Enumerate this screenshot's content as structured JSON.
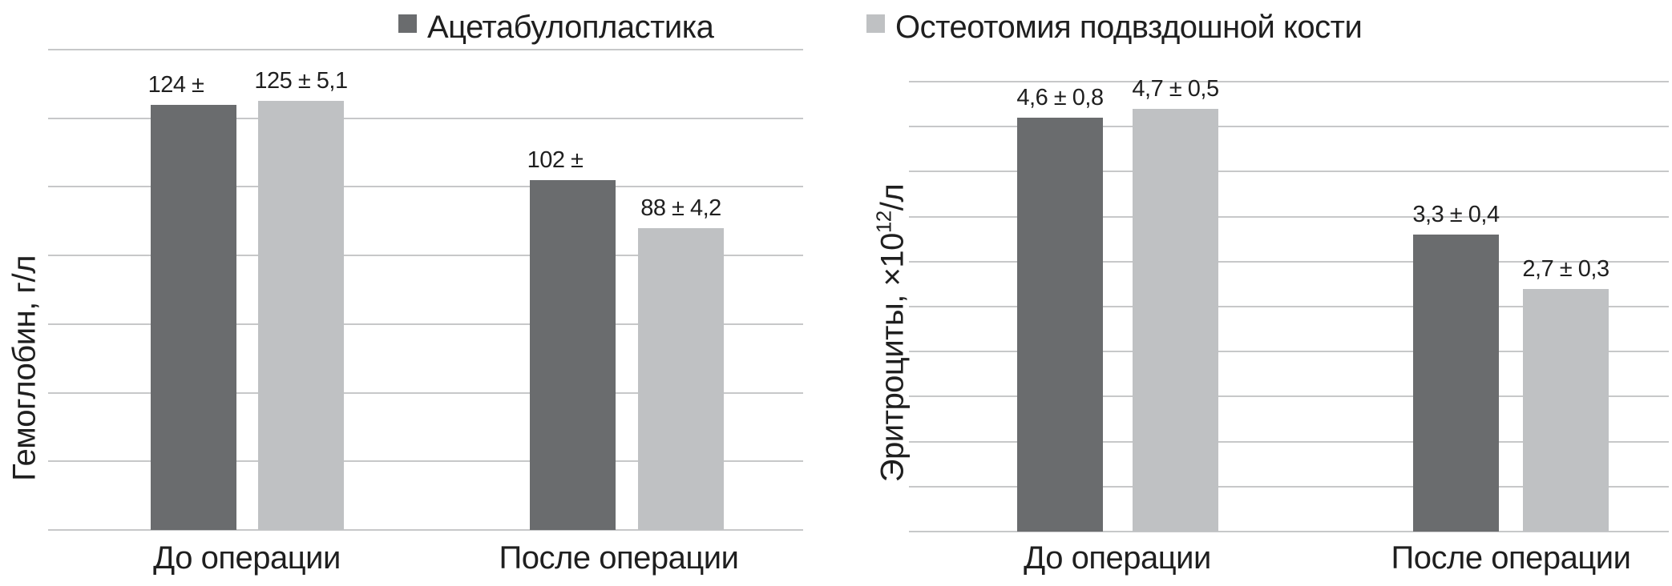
{
  "figure": {
    "background": "#ffffff",
    "text_color": "#1f1f1f",
    "gridline_color": "#c7c8c9"
  },
  "legend": {
    "items": [
      {
        "label": "Ацетабулопластика",
        "color": "#6a6c6e",
        "swatch": "dark-gray-square"
      },
      {
        "label": "Остеотомия подвздошной кости",
        "color": "#bfc1c3",
        "swatch": "light-gray-square"
      }
    ]
  },
  "chart_data": {
    "type": "bar",
    "grid": true,
    "legend_position": "top",
    "charts": [
      {
        "ylabel": "Гемоглобин, г/л",
        "categories": [
          "До операции",
          "После операции"
        ],
        "series": [
          {
            "name": "Ацетабулопластика",
            "color": "#6a6c6e",
            "values": [
              124,
              102
            ],
            "data_labels": [
              "124 ±",
              "102 ±"
            ]
          },
          {
            "name": "Остеотомия подвздошной кости",
            "color": "#bfc1c3",
            "values": [
              125,
              88
            ],
            "data_labels": [
              "125 ± 5,1",
              "88 ± 4,2"
            ]
          }
        ],
        "ylim": [
          0,
          140
        ],
        "gridline_step": 20
      },
      {
        "ylabel": "Эритроциты, ×10¹²/л",
        "ylabel_parts": {
          "before": "Эритроциты, ×10",
          "sup": "12",
          "after": "/л"
        },
        "categories": [
          "До операции",
          "После операции"
        ],
        "series": [
          {
            "name": "Ацетабулопластика",
            "color": "#6a6c6e",
            "values": [
              4.6,
              3.3
            ],
            "data_labels": [
              "4,6 ± 0,8",
              "3,3 ± 0,4"
            ]
          },
          {
            "name": "Остеотомия подвздошной кости",
            "color": "#bfc1c3",
            "values": [
              4.7,
              2.7
            ],
            "data_labels": [
              "4,7 ± 0,5",
              "2,7 ± 0,3"
            ]
          }
        ],
        "ylim": [
          0,
          5
        ],
        "gridline_step": 0.5
      }
    ]
  }
}
